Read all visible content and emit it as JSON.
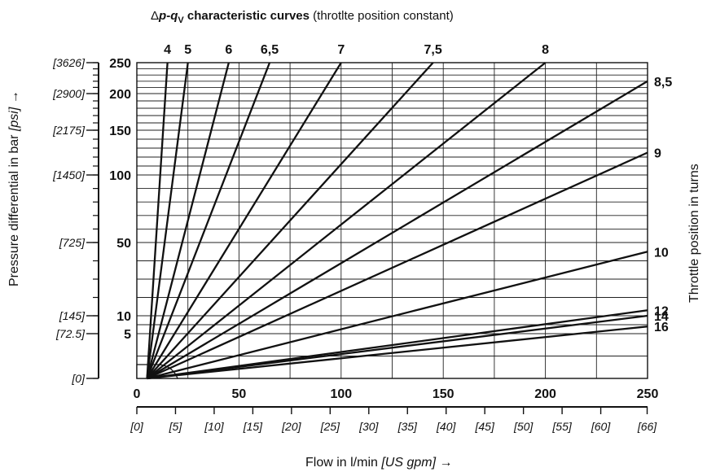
{
  "chart_data": {
    "type": "line",
    "title_prefix": "Δ",
    "title_p": "p",
    "title_dash": "-",
    "title_q": "q",
    "title_sub": "V",
    "title_rest": " characteristic curves",
    "subtitle": " (throtlte position constant)",
    "xlabel": "Flow in l/min ",
    "xlabel_unit": "[US gpm]",
    "xlabel_arrow": " →",
    "ylabel": "Pressure differential in bar ",
    "ylabel_unit": "[psi]",
    "ylabel_arrow": " →",
    "right_label": "Throttle position in turns",
    "xlim": [
      0,
      250
    ],
    "ylim": [
      0,
      250
    ],
    "x_ticks": [
      "0",
      "50",
      "100",
      "150",
      "200",
      "250"
    ],
    "x_tick_values": [
      0,
      50,
      100,
      150,
      200,
      250
    ],
    "x_secondary_ticks": [
      "[0]",
      "[5]",
      "[10]",
      "[15]",
      "[20]",
      "[25]",
      "[30]",
      "[35]",
      "[40]",
      "[45]",
      "[50]",
      "[55]",
      "[60]",
      "[66]"
    ],
    "x_secondary_values": [
      0,
      5,
      10,
      15,
      20,
      25,
      30,
      35,
      40,
      45,
      50,
      55,
      60,
      66
    ],
    "y_ticks": [
      "5",
      "10",
      "50",
      "100",
      "150",
      "200",
      "250"
    ],
    "y_tick_values": [
      5,
      10,
      50,
      100,
      150,
      200,
      250
    ],
    "y_secondary_ticks": [
      "[0]",
      "[72.5]",
      "[145]",
      "[725]",
      "[1450]",
      "[2175]",
      "[2900]",
      "[3626]"
    ],
    "y_secondary_values": [
      0,
      5,
      10,
      50,
      100,
      150,
      200,
      250
    ],
    "series": [
      {
        "name": "4",
        "x": [
          5,
          15
        ],
        "y": [
          0,
          250
        ],
        "label_pos": "top"
      },
      {
        "name": "5",
        "x": [
          5,
          25
        ],
        "y": [
          0,
          250
        ],
        "label_pos": "top"
      },
      {
        "name": "6",
        "x": [
          5,
          45
        ],
        "y": [
          0,
          250
        ],
        "label_pos": "top"
      },
      {
        "name": "6,5",
        "x": [
          5,
          65
        ],
        "y": [
          0,
          250
        ],
        "label_pos": "top"
      },
      {
        "name": "7",
        "x": [
          5,
          100
        ],
        "y": [
          0,
          250
        ],
        "label_pos": "top"
      },
      {
        "name": "7,5",
        "x": [
          5,
          145
        ],
        "y": [
          0,
          250
        ],
        "label_pos": "top"
      },
      {
        "name": "8",
        "x": [
          5,
          200
        ],
        "y": [
          0,
          250
        ],
        "label_pos": "top"
      },
      {
        "name": "8,5",
        "x": [
          5,
          250
        ],
        "y": [
          0,
          220
        ],
        "label_pos": "right"
      },
      {
        "name": "9",
        "x": [
          5,
          250
        ],
        "y": [
          0,
          125
        ],
        "label_pos": "right"
      },
      {
        "name": "10",
        "x": [
          5,
          250
        ],
        "y": [
          0,
          45
        ],
        "label_pos": "right"
      },
      {
        "name": "12",
        "x": [
          5,
          250
        ],
        "y": [
          0,
          13
        ],
        "label_pos": "right"
      },
      {
        "name": "14",
        "x": [
          5,
          250
        ],
        "y": [
          0,
          10
        ],
        "label_pos": "right"
      },
      {
        "name": "16",
        "x": [
          5,
          250
        ],
        "y": [
          0,
          7
        ],
        "label_pos": "right"
      }
    ],
    "grid": true,
    "legend": "none"
  }
}
